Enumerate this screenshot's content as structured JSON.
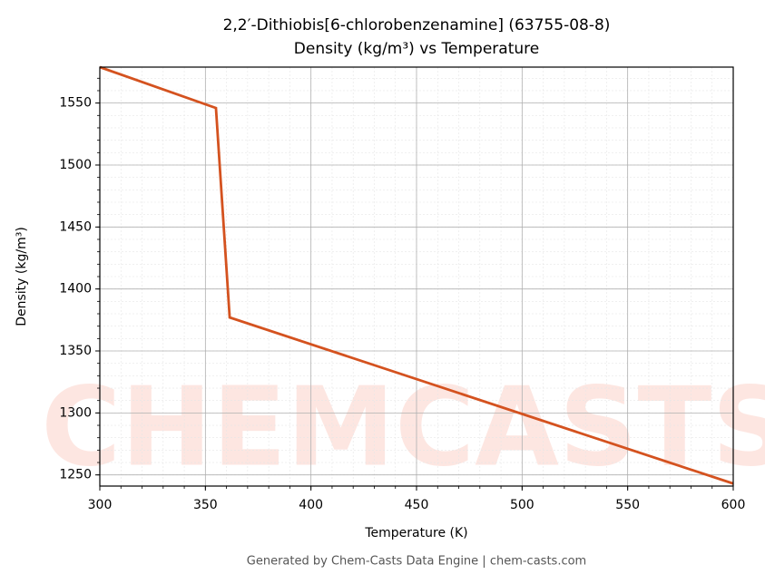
{
  "chart_data": {
    "type": "line",
    "title": "2,2′-Dithiobis[6-chlorobenzenamine] (63755-08-8)",
    "subtitle": "Density (kg/m³) vs Temperature",
    "x_label": "Temperature (K)",
    "y_label": "Density (kg/m³)",
    "watermark": "CHEMCASTS",
    "footer": "Generated by Chem-Casts Data Engine | chem-casts.com",
    "x": [
      300,
      355,
      361.5,
      600
    ],
    "series": [
      {
        "name": "Density",
        "color": "#d4521f",
        "values": [
          1579,
          1546,
          1377,
          1243
        ]
      }
    ],
    "xlim": [
      300,
      600
    ],
    "xticks": [
      300,
      350,
      400,
      450,
      500,
      550,
      600
    ],
    "ylim": [
      1241,
      1579
    ],
    "yticks": [
      1250,
      1300,
      1350,
      1400,
      1450,
      1500,
      1550
    ],
    "grid": true,
    "minor_grid": true
  }
}
